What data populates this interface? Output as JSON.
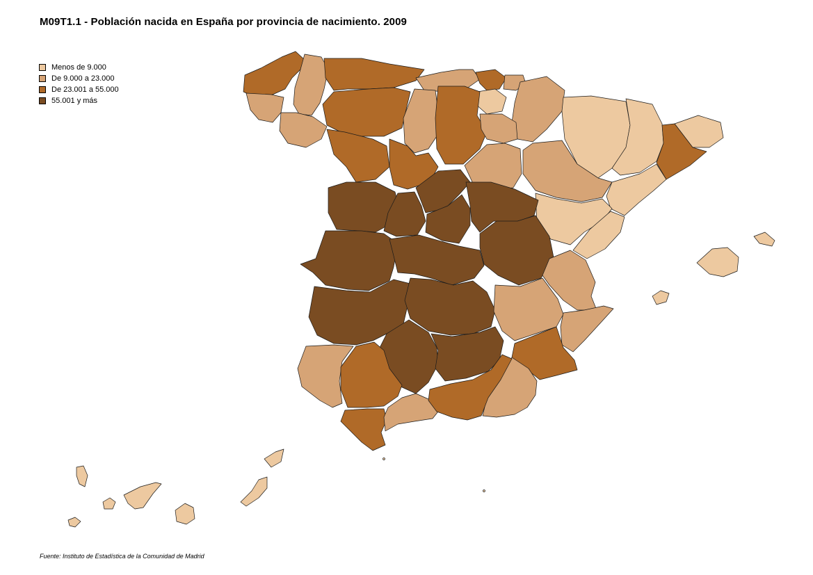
{
  "title": "M09T1.1 - Población nacida en España por provincia de nacimiento. 2009",
  "legend": [
    {
      "label": "Menos de 9.000",
      "color": "#EDC9A0"
    },
    {
      "label": "De 9.000 a 23.000",
      "color": "#D6A476"
    },
    {
      "label": "De 23.001  a 55.000",
      "color": "#B06A28"
    },
    {
      "label": "55.001 y más",
      "color": "#7A4C22"
    }
  ],
  "source": "Fuente: Instituto de Estadística de la Comunidad de Madrid"
}
